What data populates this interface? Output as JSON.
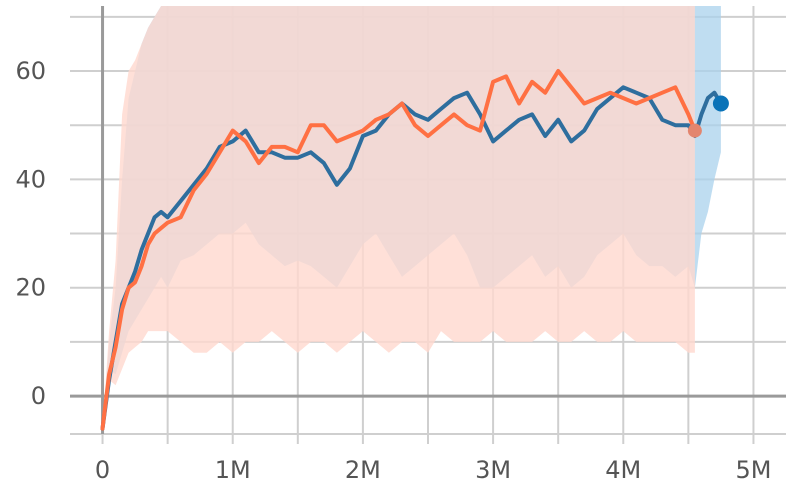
{
  "chart_data": {
    "type": "line",
    "title": "",
    "xlabel": "",
    "ylabel": "",
    "xlim": [
      -250000,
      5250000
    ],
    "ylim": [
      -7,
      72
    ],
    "x_ticks": [
      {
        "value": 0,
        "label": "0"
      },
      {
        "value": 1000000,
        "label": "1M"
      },
      {
        "value": 2000000,
        "label": "2M"
      },
      {
        "value": 3000000,
        "label": "3M"
      },
      {
        "value": 4000000,
        "label": "4M"
      },
      {
        "value": 5000000,
        "label": "5M"
      }
    ],
    "y_ticks": [
      {
        "value": 0,
        "label": "0"
      },
      {
        "value": 20,
        "label": "20"
      },
      {
        "value": 40,
        "label": "40"
      },
      {
        "value": 60,
        "label": "60"
      }
    ],
    "grid": true,
    "series": [
      {
        "color": "#2E6E9E",
        "band_color": "#A9D2EC",
        "end_marker_color": "#0A73B8",
        "x": [
          0,
          50000,
          100000,
          150000,
          200000,
          250000,
          300000,
          350000,
          400000,
          450000,
          500000,
          600000,
          700000,
          800000,
          900000,
          1000000,
          1100000,
          1200000,
          1300000,
          1400000,
          1500000,
          1600000,
          1700000,
          1800000,
          1900000,
          2000000,
          2100000,
          2200000,
          2300000,
          2400000,
          2500000,
          2600000,
          2700000,
          2800000,
          2900000,
          3000000,
          3100000,
          3200000,
          3300000,
          3400000,
          3500000,
          3600000,
          3700000,
          3800000,
          3900000,
          4000000,
          4100000,
          4200000,
          4300000,
          4400000,
          4500000,
          4550000,
          4600000,
          4650000,
          4700000,
          4750000
        ],
        "y": [
          -6,
          3,
          10,
          17,
          20,
          23,
          27,
          30,
          33,
          34,
          33,
          36,
          39,
          42,
          46,
          47,
          49,
          45,
          45,
          44,
          44,
          45,
          43,
          39,
          42,
          48,
          49,
          52,
          54,
          52,
          51,
          53,
          55,
          56,
          52,
          47,
          49,
          51,
          52,
          48,
          51,
          47,
          49,
          53,
          55,
          57,
          56,
          55,
          51,
          50,
          50,
          48,
          52,
          55,
          56,
          54
        ],
        "band_low": [
          -6,
          5,
          4,
          8,
          12,
          14,
          16,
          18,
          20,
          22,
          20,
          25,
          26,
          28,
          30,
          30,
          32,
          28,
          26,
          24,
          25,
          24,
          22,
          20,
          24,
          28,
          30,
          26,
          22,
          24,
          26,
          28,
          30,
          26,
          20,
          20,
          22,
          24,
          26,
          22,
          24,
          20,
          22,
          26,
          28,
          30,
          26,
          24,
          24,
          22,
          24,
          20,
          30,
          34,
          40,
          45
        ],
        "band_high": [
          -6,
          10,
          20,
          40,
          55,
          60,
          65,
          68,
          70,
          72,
          72,
          72,
          72,
          72,
          72,
          72,
          72,
          72,
          72,
          72,
          72,
          72,
          72,
          72,
          72,
          72,
          72,
          72,
          72,
          72,
          72,
          72,
          72,
          72,
          72,
          72,
          72,
          72,
          72,
          72,
          72,
          72,
          72,
          72,
          72,
          72,
          72,
          72,
          72,
          72,
          72,
          72,
          72,
          72,
          72,
          72
        ]
      },
      {
        "color": "#FF7043",
        "band_color": "#FFD8CE",
        "end_marker_color": "#E3856E",
        "x": [
          0,
          50000,
          100000,
          150000,
          200000,
          250000,
          300000,
          350000,
          400000,
          450000,
          500000,
          600000,
          700000,
          800000,
          900000,
          1000000,
          1100000,
          1200000,
          1300000,
          1400000,
          1500000,
          1600000,
          1700000,
          1800000,
          1900000,
          2000000,
          2100000,
          2200000,
          2300000,
          2400000,
          2500000,
          2600000,
          2700000,
          2800000,
          2900000,
          3000000,
          3100000,
          3200000,
          3300000,
          3400000,
          3500000,
          3600000,
          3700000,
          3800000,
          3900000,
          4000000,
          4100000,
          4200000,
          4300000,
          4400000,
          4500000,
          4550000
        ],
        "y": [
          -6,
          4,
          9,
          16,
          20,
          21,
          24,
          28,
          30,
          31,
          32,
          33,
          38,
          41,
          45,
          49,
          47,
          43,
          46,
          46,
          45,
          50,
          50,
          47,
          48,
          49,
          51,
          52,
          54,
          50,
          48,
          50,
          52,
          50,
          49,
          58,
          59,
          54,
          58,
          56,
          60,
          57,
          54,
          55,
          56,
          55,
          54,
          55,
          56,
          57,
          52,
          49
        ],
        "band_low": [
          -6,
          3,
          2,
          5,
          8,
          9,
          10,
          12,
          12,
          12,
          12,
          10,
          8,
          8,
          10,
          8,
          10,
          10,
          12,
          10,
          8,
          10,
          10,
          8,
          10,
          12,
          10,
          8,
          10,
          10,
          8,
          12,
          10,
          10,
          10,
          12,
          10,
          10,
          10,
          12,
          10,
          10,
          12,
          10,
          10,
          12,
          10,
          10,
          10,
          10,
          8,
          8
        ],
        "band_high": [
          -6,
          12,
          25,
          52,
          60,
          62,
          65,
          68,
          70,
          72,
          72,
          72,
          72,
          72,
          72,
          72,
          72,
          72,
          72,
          72,
          72,
          72,
          72,
          72,
          72,
          72,
          72,
          72,
          72,
          72,
          72,
          72,
          72,
          72,
          72,
          72,
          72,
          72,
          72,
          72,
          72,
          72,
          72,
          72,
          72,
          72,
          72,
          72,
          72,
          72,
          72,
          72
        ]
      }
    ]
  }
}
